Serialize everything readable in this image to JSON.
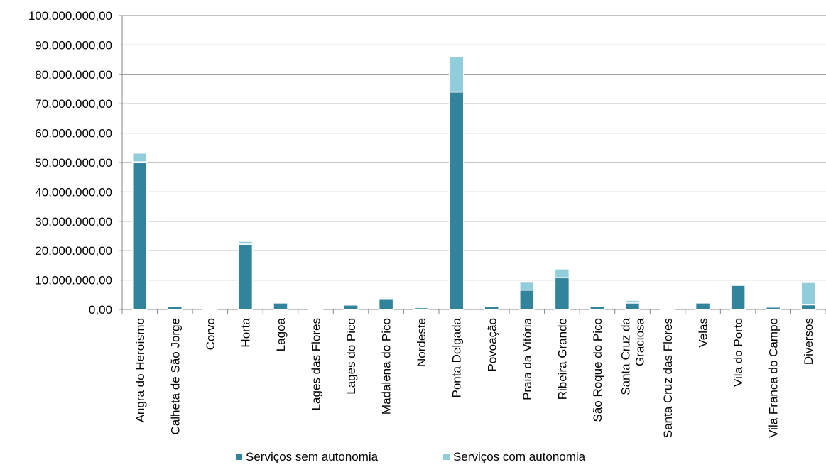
{
  "chart_data": {
    "type": "bar",
    "stacked": true,
    "categories": [
      "Angra do Heroísmo",
      "Calheta de São Jorge",
      "Corvo",
      "Horta",
      "Lagoa",
      "Lages das Flores",
      "Lages do Pico",
      "Madalena do Pico",
      "Nordeste",
      "Ponta Delgada",
      "Povoação",
      "Praia da Vitória",
      "Ribeira Grande",
      "São Roque do Pico",
      [
        "Santa Cruz da",
        "Graciosa"
      ],
      "Santa Cruz das Flores",
      "Velas",
      "Vila do Porto",
      "Vila Franca do Campo",
      "Diversos"
    ],
    "series": [
      {
        "name": "Serviços sem autonomia",
        "color": "#31849B",
        "values": [
          50200000,
          1000000,
          200000,
          22200000,
          2200000,
          200000,
          1500000,
          3700000,
          600000,
          74000000,
          1000000,
          6600000,
          10800000,
          1000000,
          2200000,
          200000,
          2200000,
          8200000,
          800000,
          1600000
        ]
      },
      {
        "name": "Serviços com autonomia",
        "color": "#92CDDC",
        "values": [
          3000000,
          0,
          0,
          1000000,
          0,
          0,
          0,
          400000,
          0,
          12000000,
          0,
          2700000,
          3000000,
          0,
          900000,
          0,
          0,
          0,
          200000,
          7600000
        ]
      }
    ],
    "ylim": [
      0,
      100000000
    ],
    "yticks": [
      "0,00",
      "10.000.000,00",
      "20.000.000,00",
      "30.000.000,00",
      "40.000.000,00",
      "50.000.000,00",
      "60.000.000,00",
      "70.000.000,00",
      "80.000.000,00",
      "90.000.000,00",
      "100.000.000,00"
    ],
    "grid": true,
    "legend_position": "bottom",
    "title": "",
    "xlabel": "",
    "ylabel": ""
  }
}
